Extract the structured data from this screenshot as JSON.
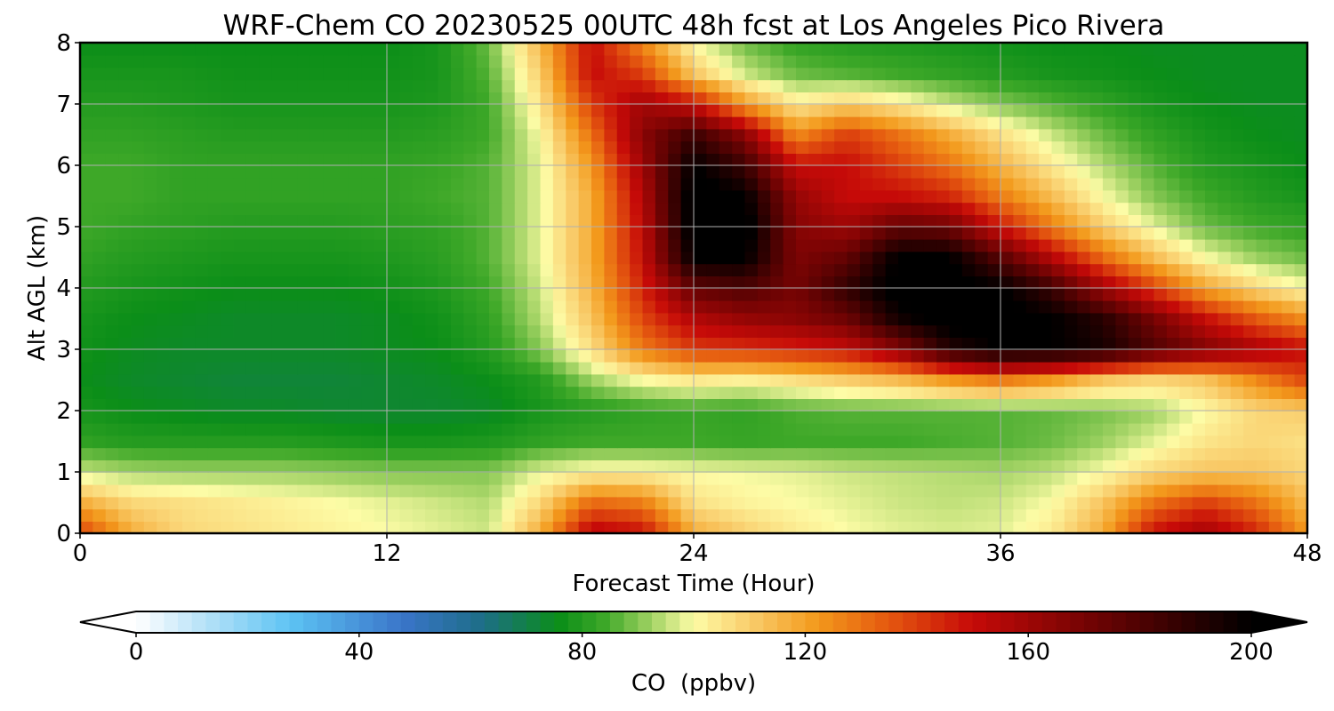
{
  "chart_data": {
    "type": "heatmap",
    "title": "WRF-Chem CO  20230525 00UTC 48h fcst at Los Angeles Pico Rivera",
    "xlabel": "Forecast Time (Hour)",
    "ylabel": "Alt AGL (km)",
    "xlim": [
      0,
      48
    ],
    "ylim": [
      0,
      8
    ],
    "x_ticks": [
      "0",
      "12",
      "24",
      "36",
      "48"
    ],
    "y_ticks": [
      "0",
      "1",
      "2",
      "3",
      "4",
      "5",
      "6",
      "7",
      "8"
    ],
    "grid": true,
    "colorbar": {
      "label": "CO  (ppbv)",
      "range": [
        0,
        200
      ],
      "ticks": [
        "0",
        "40",
        "80",
        "120",
        "160",
        "200"
      ],
      "extend": "both",
      "orientation": "horizontal",
      "placement": "bottom",
      "color_stops": [
        [
          0,
          "#ffffff"
        ],
        [
          12,
          "#b8e2f8"
        ],
        [
          28,
          "#5cc2f3"
        ],
        [
          48,
          "#3a74c8"
        ],
        [
          62,
          "#1d6e88"
        ],
        [
          76,
          "#0b8e18"
        ],
        [
          84,
          "#3ea828"
        ],
        [
          92,
          "#9cd060"
        ],
        [
          100,
          "#fdfca6"
        ],
        [
          110,
          "#f9cd6c"
        ],
        [
          122,
          "#f39a1c"
        ],
        [
          134,
          "#e65d10"
        ],
        [
          150,
          "#c60a08"
        ],
        [
          172,
          "#6e0303"
        ],
        [
          200,
          "#000000"
        ]
      ]
    },
    "x_hours": [
      0,
      2,
      4,
      6,
      8,
      10,
      12,
      14,
      16,
      18,
      20,
      22,
      24,
      26,
      28,
      30,
      32,
      34,
      36,
      38,
      40,
      42,
      44,
      46,
      48
    ],
    "y_km": [
      0,
      0.5,
      1,
      1.5,
      2,
      2.5,
      3,
      3.5,
      4,
      4.5,
      5,
      5.5,
      6,
      6.5,
      7,
      7.5,
      8
    ],
    "values_ppbv": [
      [
        140,
        118,
        108,
        106,
        104,
        102,
        100,
        98,
        96,
        118,
        155,
        150,
        118,
        110,
        104,
        100,
        98,
        97,
        98,
        104,
        118,
        150,
        160,
        145,
        122
      ],
      [
        118,
        108,
        106,
        104,
        102,
        100,
        98,
        96,
        94,
        108,
        132,
        128,
        106,
        102,
        100,
        98,
        96,
        95,
        96,
        100,
        112,
        130,
        140,
        130,
        114
      ],
      [
        96,
        93,
        92,
        92,
        92,
        91,
        90,
        90,
        90,
        98,
        102,
        102,
        100,
        99,
        98,
        96,
        95,
        94,
        93,
        95,
        100,
        108,
        112,
        112,
        108
      ],
      [
        82,
        80,
        80,
        80,
        80,
        79,
        78,
        78,
        79,
        82,
        84,
        84,
        84,
        83,
        84,
        84,
        84,
        85,
        86,
        88,
        92,
        98,
        105,
        108,
        106
      ],
      [
        78,
        76,
        75,
        74,
        74,
        73,
        73,
        73,
        74,
        78,
        80,
        82,
        83,
        82,
        85,
        86,
        86,
        86,
        86,
        87,
        89,
        92,
        100,
        108,
        110
      ],
      [
        76,
        74,
        73,
        72,
        72,
        72,
        73,
        74,
        76,
        80,
        92,
        100,
        104,
        102,
        106,
        110,
        114,
        122,
        128,
        122,
        112,
        108,
        112,
        125,
        138
      ],
      [
        77,
        75,
        74,
        74,
        74,
        74,
        75,
        76,
        80,
        90,
        106,
        128,
        140,
        142,
        145,
        150,
        165,
        190,
        200,
        200,
        195,
        180,
        168,
        158,
        150
      ],
      [
        78,
        76,
        75,
        74,
        74,
        74,
        75,
        77,
        82,
        94,
        112,
        138,
        155,
        162,
        165,
        172,
        195,
        205,
        205,
        200,
        190,
        170,
        150,
        135,
        124
      ],
      [
        80,
        78,
        77,
        76,
        76,
        76,
        77,
        79,
        84,
        96,
        116,
        145,
        175,
        180,
        170,
        188,
        205,
        205,
        200,
        185,
        160,
        140,
        120,
        108,
        100
      ],
      [
        82,
        80,
        79,
        78,
        78,
        78,
        79,
        81,
        86,
        98,
        118,
        150,
        200,
        200,
        168,
        175,
        200,
        200,
        178,
        155,
        132,
        114,
        100,
        92,
        88
      ],
      [
        84,
        82,
        81,
        80,
        80,
        80,
        81,
        82,
        86,
        98,
        118,
        152,
        205,
        205,
        166,
        160,
        175,
        172,
        148,
        128,
        110,
        98,
        88,
        84,
        82
      ],
      [
        84,
        84,
        82,
        82,
        82,
        82,
        82,
        84,
        86,
        98,
        118,
        155,
        205,
        200,
        162,
        150,
        150,
        145,
        128,
        114,
        100,
        90,
        84,
        80,
        78
      ],
      [
        84,
        84,
        82,
        82,
        82,
        82,
        82,
        83,
        86,
        98,
        122,
        160,
        200,
        185,
        150,
        150,
        140,
        130,
        116,
        104,
        94,
        86,
        80,
        78,
        76
      ],
      [
        82,
        82,
        81,
        80,
        80,
        80,
        80,
        81,
        84,
        100,
        130,
        165,
        185,
        165,
        125,
        140,
        130,
        118,
        106,
        96,
        88,
        82,
        78,
        76,
        75
      ],
      [
        80,
        80,
        79,
        78,
        78,
        78,
        78,
        79,
        84,
        105,
        140,
        160,
        150,
        122,
        104,
        110,
        104,
        96,
        90,
        86,
        82,
        78,
        76,
        75,
        75
      ],
      [
        78,
        78,
        78,
        77,
        77,
        77,
        77,
        78,
        86,
        110,
        150,
        140,
        112,
        96,
        88,
        86,
        84,
        82,
        80,
        78,
        77,
        76,
        75,
        75,
        75
      ],
      [
        76,
        76,
        76,
        76,
        76,
        76,
        76,
        78,
        88,
        115,
        150,
        125,
        100,
        88,
        82,
        80,
        79,
        78,
        77,
        76,
        76,
        75,
        75,
        75,
        75
      ]
    ]
  }
}
